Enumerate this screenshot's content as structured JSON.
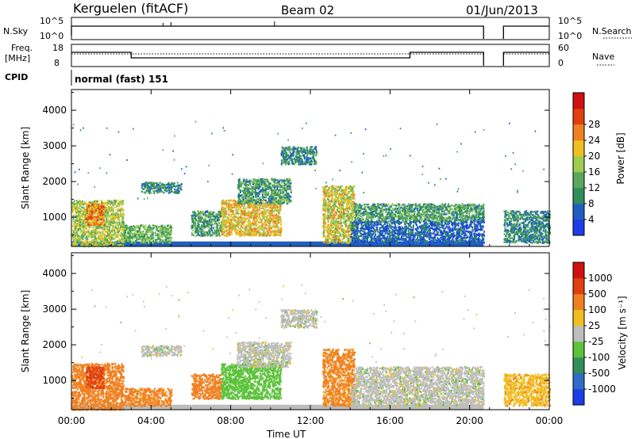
{
  "header": {
    "station": "Kerguelen (fitACF)",
    "beam": "Beam 02",
    "date": "01/Jun/2013"
  },
  "status_panels": {
    "nsky": {
      "label": "N.Sky",
      "ticks": [
        "10^5",
        "10^0"
      ]
    },
    "nsearch": {
      "label": "N.Search",
      "ticks": [
        "10^5",
        "10^0"
      ]
    },
    "freq": {
      "label_line1": "Freq.",
      "label_line2": "[MHz]",
      "ticks": [
        "18",
        "8"
      ]
    },
    "nave": {
      "label": "Nave",
      "ticks": [
        "60",
        "0"
      ]
    },
    "cpid": {
      "label": "CPID",
      "value": "normal (fast) 151"
    },
    "freq_steps": [
      {
        "from_h": 0.0,
        "to_h": 3.0,
        "level": "high"
      },
      {
        "from_h": 3.0,
        "to_h": 17.0,
        "level": "low"
      },
      {
        "from_h": 17.0,
        "to_h": 20.7,
        "level": "high"
      },
      {
        "from_h": 21.7,
        "to_h": 24.0,
        "level": "high"
      }
    ],
    "data_gap_h": [
      20.7,
      21.7
    ]
  },
  "chart_data": [
    {
      "type": "heatmap",
      "title": "Power",
      "xlabel": "",
      "ylabel": "Slant Range [km]",
      "xlim": [
        0,
        24
      ],
      "ylim": [
        180,
        4580
      ],
      "yticks": [
        1000,
        2000,
        3000,
        4000
      ],
      "colorbar": {
        "label": "Power [dB]",
        "ticks": [
          "4",
          "8",
          "12",
          "16",
          "20",
          "24",
          "28"
        ],
        "colors": [
          "#1c3ee6",
          "#1f5fc0",
          "#2f8f5a",
          "#5aa85e",
          "#9ccc50",
          "#f0c020",
          "#f08020",
          "#e04010",
          "#d01010"
        ]
      },
      "echo_regions": [
        {
          "t0": 0.0,
          "t1": 2.6,
          "r0": 200,
          "r1": 1500,
          "level": 18
        },
        {
          "t0": 0.7,
          "t1": 1.6,
          "r0": 800,
          "r1": 1400,
          "level": 26
        },
        {
          "t0": 2.6,
          "t1": 5.0,
          "r0": 300,
          "r1": 800,
          "level": 14
        },
        {
          "t0": 3.5,
          "t1": 5.5,
          "r0": 1700,
          "r1": 2000,
          "level": 10
        },
        {
          "t0": 6.0,
          "t1": 7.5,
          "r0": 500,
          "r1": 1200,
          "level": 12
        },
        {
          "t0": 7.5,
          "t1": 10.5,
          "r0": 500,
          "r1": 1500,
          "level": 22
        },
        {
          "t0": 8.3,
          "t1": 11.0,
          "r0": 1400,
          "r1": 2100,
          "level": 12
        },
        {
          "t0": 10.5,
          "t1": 12.3,
          "r0": 2500,
          "r1": 3000,
          "level": 10
        },
        {
          "t0": 12.6,
          "t1": 14.2,
          "r0": 300,
          "r1": 1900,
          "level": 20
        },
        {
          "t0": 14.2,
          "t1": 20.7,
          "r0": 900,
          "r1": 1400,
          "level": 12
        },
        {
          "t0": 14.0,
          "t1": 20.7,
          "r0": 300,
          "r1": 900,
          "level": 6
        },
        {
          "t0": 21.7,
          "t1": 24.0,
          "r0": 300,
          "r1": 1200,
          "level": 10
        }
      ],
      "ground_band": {
        "t0": 0.0,
        "t1": 20.7,
        "r0": 180,
        "r1": 320,
        "level": 4
      }
    },
    {
      "type": "heatmap",
      "title": "Velocity",
      "xlabel": "Time UT",
      "ylabel": "Slant Range [km]",
      "xlim": [
        0,
        24
      ],
      "ylim": [
        180,
        4580
      ],
      "yticks": [
        1000,
        2000,
        3000,
        4000
      ],
      "xticks": [
        "00:00",
        "04:00",
        "08:00",
        "12:00",
        "16:00",
        "20:00",
        "00:00"
      ],
      "xtick_values": [
        0,
        4,
        8,
        12,
        16,
        20,
        24
      ],
      "colorbar": {
        "label": "Velocity [m s⁻¹]",
        "ticks": [
          "1000",
          "500",
          "100",
          "25",
          "-25",
          "-100",
          "-500",
          "-1000"
        ],
        "colors": [
          "#1c3ee6",
          "#2f6cc8",
          "#2f8f5a",
          "#5bc23a",
          "#bdbdbd",
          "#f0c020",
          "#f08020",
          "#e04010",
          "#d01010"
        ]
      },
      "echo_regions": [
        {
          "t0": 0.0,
          "t1": 2.6,
          "r0": 200,
          "r1": 1500,
          "level": -300
        },
        {
          "t0": 0.7,
          "t1": 1.6,
          "r0": 800,
          "r1": 1400,
          "level": -700
        },
        {
          "t0": 2.6,
          "t1": 5.0,
          "r0": 300,
          "r1": 800,
          "level": -150
        },
        {
          "t0": 3.5,
          "t1": 5.5,
          "r0": 1700,
          "r1": 2000,
          "level": 0
        },
        {
          "t0": 6.0,
          "t1": 7.5,
          "r0": 500,
          "r1": 1200,
          "level": -200
        },
        {
          "t0": 7.5,
          "t1": 10.5,
          "r0": 500,
          "r1": 1500,
          "level": 60
        },
        {
          "t0": 8.3,
          "t1": 11.0,
          "r0": 1400,
          "r1": 2100,
          "level": 0
        },
        {
          "t0": 10.5,
          "t1": 12.3,
          "r0": 2500,
          "r1": 3000,
          "level": 0
        },
        {
          "t0": 12.6,
          "t1": 14.2,
          "r0": 300,
          "r1": 1900,
          "level": -150
        },
        {
          "t0": 14.2,
          "t1": 20.7,
          "r0": 900,
          "r1": 1400,
          "level": 0
        },
        {
          "t0": 14.0,
          "t1": 20.7,
          "r0": 300,
          "r1": 900,
          "level": 0
        },
        {
          "t0": 21.7,
          "t1": 24.0,
          "r0": 300,
          "r1": 1200,
          "level": -80
        }
      ],
      "ground_band": {
        "t0": 0.0,
        "t1": 20.7,
        "r0": 180,
        "r1": 320,
        "level": 0
      }
    }
  ]
}
